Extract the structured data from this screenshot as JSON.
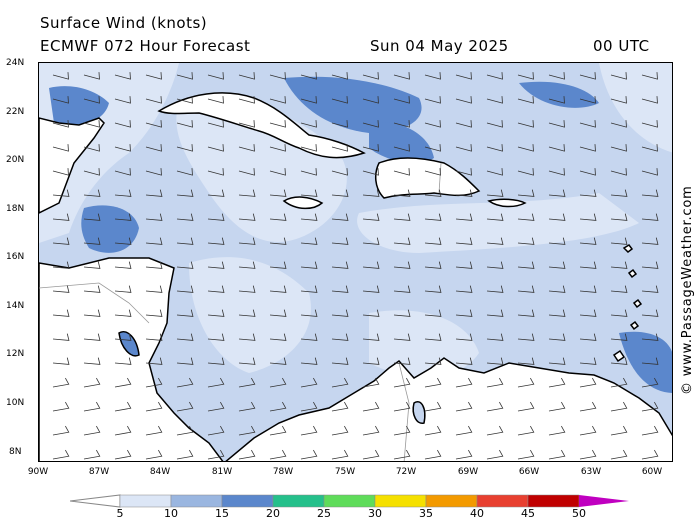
{
  "header": {
    "title": "Surface Wind (knots)",
    "model": "ECMWF 072 Hour Forecast",
    "valid_date": "Sun 04 May 2025",
    "valid_time": "00 UTC"
  },
  "axes": {
    "lat_labels": [
      "24N",
      "22N",
      "20N",
      "18N",
      "16N",
      "14N",
      "12N",
      "10N",
      "8N"
    ],
    "lon_labels": [
      "90W",
      "87W",
      "84W",
      "81W",
      "78W",
      "75W",
      "72W",
      "69W",
      "66W",
      "63W",
      "60W"
    ]
  },
  "colorbar": {
    "labels": [
      "5",
      "10",
      "15",
      "20",
      "25",
      "30",
      "35",
      "40",
      "45",
      "50"
    ],
    "colors": [
      "#ffffff",
      "#dce6f6",
      "#9ab6e0",
      "#5b87cc",
      "#25c08b",
      "#5fdc5a",
      "#f5e000",
      "#f39a00",
      "#e84030",
      "#c00000",
      "#c000c0"
    ]
  },
  "map_colors": {
    "land": "#ffffff",
    "coast": "#000000",
    "border": "#999999",
    "wind_10_15": "#9ab6e0",
    "wind_15_20": "#5b87cc",
    "wind_5_10": "#dce6f6",
    "wind_20_25": "#25c08b"
  },
  "credit": "© www.PassageWeather.com"
}
